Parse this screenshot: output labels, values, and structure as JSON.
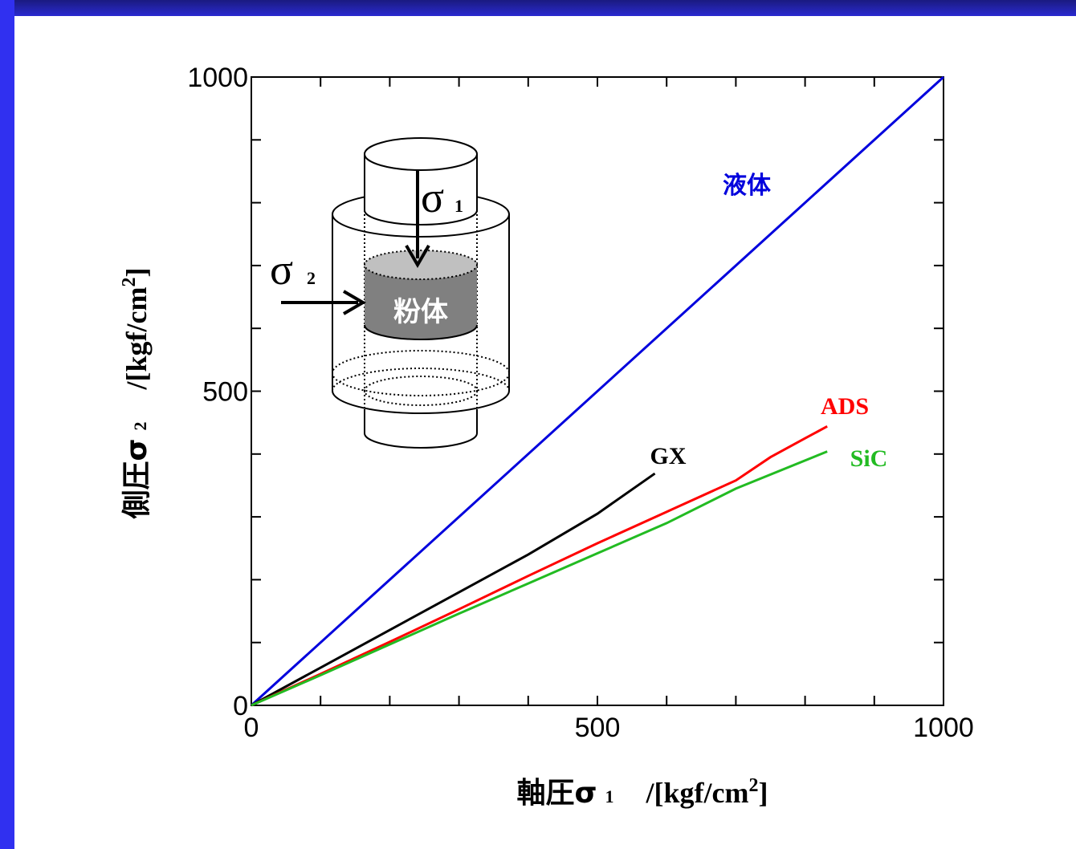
{
  "chart_data": {
    "type": "line",
    "xlabel": {
      "name": "軸圧σ",
      "sub": "1",
      "unit": "/[kgf/cm",
      "sup": "2",
      "close": "]"
    },
    "ylabel": {
      "name": "側圧σ",
      "sub": "2",
      "unit": "/[kgf/cm",
      "sup": "2",
      "close": "]"
    },
    "xlim": [
      0,
      1000
    ],
    "ylim": [
      0,
      1000
    ],
    "xticks": [
      0,
      500,
      1000
    ],
    "yticks": [
      0,
      500,
      1000
    ],
    "xminor": [
      100,
      200,
      300,
      400,
      600,
      700,
      800,
      900
    ],
    "yminor": [
      100,
      200,
      300,
      400,
      600,
      700,
      800,
      900
    ],
    "series": [
      {
        "name": "液体",
        "color": "#0000dd",
        "x": [
          0,
          1000
        ],
        "values": [
          0,
          1000
        ]
      },
      {
        "name": "GX",
        "color": "#000000",
        "x": [
          0,
          100,
          200,
          300,
          400,
          500,
          583
        ],
        "values": [
          0,
          60,
          120,
          180,
          240,
          305,
          369
        ]
      },
      {
        "name": "ADS",
        "color": "#ff0000",
        "x": [
          0,
          100,
          200,
          300,
          400,
          500,
          600,
          700,
          750,
          800,
          832
        ],
        "values": [
          0,
          50,
          101,
          153,
          206,
          258,
          308,
          358,
          395,
          425,
          444
        ]
      },
      {
        "name": "SiC",
        "color": "#22bb22",
        "x": [
          0,
          100,
          200,
          300,
          400,
          500,
          600,
          700,
          832
        ],
        "values": [
          0,
          48,
          97,
          146,
          194,
          242,
          290,
          345,
          404
        ]
      }
    ],
    "inset": {
      "sigma1": "σ",
      "sigma1_sub": "1",
      "sigma2": "σ",
      "sigma2_sub": "2",
      "powder": "粉体"
    }
  }
}
